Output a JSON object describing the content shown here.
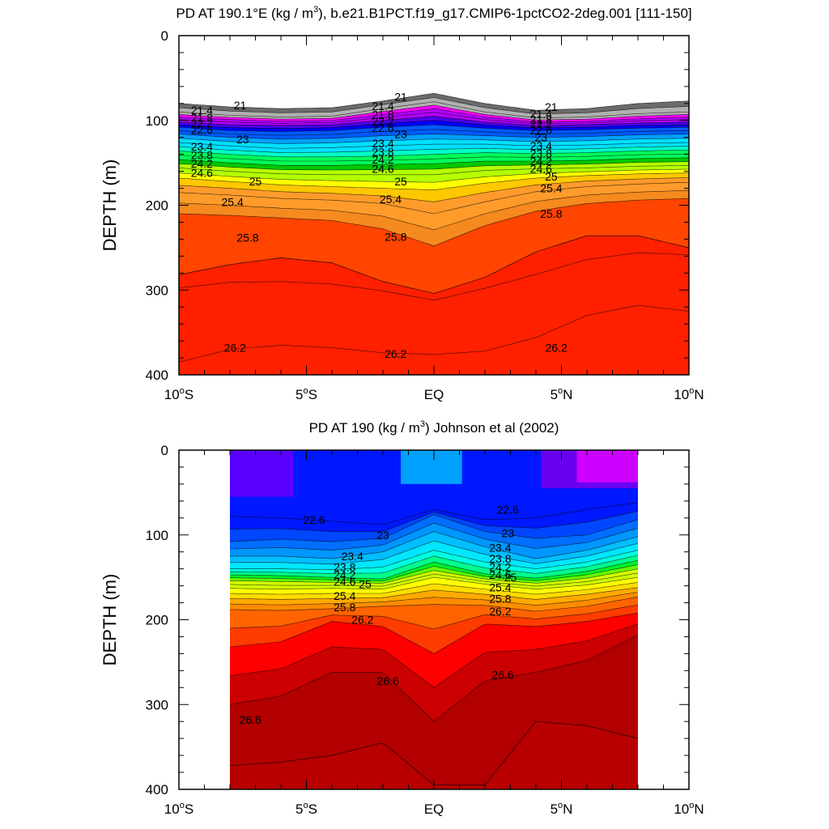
{
  "chart_data": [
    {
      "type": "heatmap",
      "title": "PD AT 190.1°E (kg / m",
      "title_sup": "3",
      "title_tail": "), b.e21.B1PCT.f19_g17.CMIP6-1pctCO2-2deg.001 [111-150]",
      "ylabel": "DEPTH (m)",
      "xlim": [
        -10,
        10
      ],
      "ylim": [
        400,
        0
      ],
      "y_ticks": [
        0,
        100,
        200,
        300,
        400
      ],
      "x_ticks": [
        {
          "v": -10,
          "num": "10",
          "hem": "S"
        },
        {
          "v": -5,
          "num": "5",
          "hem": "S"
        },
        {
          "v": 0,
          "num": "",
          "hem": "EQ"
        },
        {
          "v": 5,
          "num": "5",
          "hem": "N"
        },
        {
          "v": 10,
          "num": "10",
          "hem": "N"
        }
      ],
      "x": [
        -10,
        -8,
        -6,
        -4,
        -2,
        0,
        2,
        4,
        6,
        8,
        10
      ],
      "levels": [
        21,
        21.4,
        21.8,
        22.2,
        22.6,
        23,
        23.4,
        23.8,
        24.2,
        24.6,
        25,
        25.4,
        25.8,
        26.2
      ],
      "contour_depths": [
        [
          80,
          84,
          86,
          85,
          77,
          68,
          80,
          88,
          86,
          80,
          77
        ],
        [
          90,
          94,
          96,
          95,
          86,
          78,
          90,
          97,
          96,
          92,
          90
        ],
        [
          96,
          99,
          101,
          100,
          93,
          86,
          96,
          102,
          101,
          98,
          96
        ],
        [
          102,
          105,
          106,
          105,
          100,
          95,
          102,
          106,
          105,
          103,
          102
        ],
        [
          108,
          112,
          113,
          112,
          108,
          105,
          109,
          112,
          111,
          109,
          108
        ],
        [
          116,
          120,
          122,
          121,
          118,
          116,
          118,
          120,
          119,
          117,
          116
        ],
        [
          126,
          130,
          133,
          132,
          130,
          128,
          128,
          130,
          129,
          127,
          126
        ],
        [
          136,
          140,
          143,
          143,
          142,
          140,
          138,
          139,
          138,
          136,
          135
        ],
        [
          146,
          150,
          153,
          153,
          152,
          151,
          148,
          148,
          147,
          145,
          144
        ],
        [
          156,
          160,
          163,
          164,
          164,
          164,
          159,
          157,
          156,
          154,
          153
        ],
        [
          168,
          172,
          176,
          178,
          180,
          182,
          174,
          168,
          165,
          163,
          162
        ],
        [
          185,
          188,
          192,
          194,
          198,
          210,
          196,
          184,
          178,
          175,
          173
        ],
        [
          210,
          212,
          215,
          218,
          228,
          248,
          224,
          207,
          198,
          194,
          192
        ],
        [
          385,
          370,
          365,
          368,
          374,
          376,
          372,
          356,
          330,
          318,
          325
        ]
      ],
      "bands": [
        {
          "depth": 270,
          "profile": [
            282,
            270,
            262,
            268,
            290,
            304,
            285,
            255,
            236,
            236,
            250
          ]
        }
      ],
      "colors": [
        "#6b6b6b",
        "#b0b0b0",
        "#ff00ff",
        "#b400ff",
        "#4b00e8",
        "#0000ff",
        "#005aff",
        "#00a0ff",
        "#00e0ff",
        "#00ffc8",
        "#00ff5a",
        "#00c800",
        "#b4ff00",
        "#ffff00",
        "#ffc800",
        "#ff9b2a",
        "#f58a1f",
        "#ff4500",
        "#ff0000"
      ],
      "contour_labels": [
        {
          "x": -7.6,
          "d": 82,
          "text": "21"
        },
        {
          "x": -9.1,
          "d": 88,
          "text": "21.4"
        },
        {
          "x": -9.1,
          "d": 97,
          "text": "21.8"
        },
        {
          "x": -9.1,
          "d": 103,
          "text": "22.2"
        },
        {
          "x": -9.1,
          "d": 111,
          "text": "22.6"
        },
        {
          "x": -7.5,
          "d": 122,
          "text": "23"
        },
        {
          "x": -9.1,
          "d": 131,
          "text": "23.4"
        },
        {
          "x": -9.1,
          "d": 141,
          "text": "23.8"
        },
        {
          "x": -9.1,
          "d": 151,
          "text": "24.2"
        },
        {
          "x": -9.1,
          "d": 162,
          "text": "24.6"
        },
        {
          "x": -7.0,
          "d": 172,
          "text": "25"
        },
        {
          "x": -7.9,
          "d": 196,
          "text": "25.4"
        },
        {
          "x": -7.3,
          "d": 238,
          "text": "25.8"
        },
        {
          "x": -7.8,
          "d": 368,
          "text": "26.2"
        },
        {
          "x": -1.3,
          "d": 72,
          "text": "21"
        },
        {
          "x": -2.0,
          "d": 83,
          "text": "21.4"
        },
        {
          "x": -2.0,
          "d": 93,
          "text": "21.8"
        },
        {
          "x": -2.0,
          "d": 101,
          "text": "22.2"
        },
        {
          "x": -2.0,
          "d": 109,
          "text": "22.6"
        },
        {
          "x": -1.3,
          "d": 116,
          "text": "23"
        },
        {
          "x": -2.0,
          "d": 127,
          "text": "23.4"
        },
        {
          "x": -2.0,
          "d": 137,
          "text": "23.8"
        },
        {
          "x": -2.0,
          "d": 146,
          "text": "24.2"
        },
        {
          "x": -2.0,
          "d": 157,
          "text": "24.6"
        },
        {
          "x": -1.3,
          "d": 172,
          "text": "25"
        },
        {
          "x": -1.7,
          "d": 193,
          "text": "25.4"
        },
        {
          "x": -1.5,
          "d": 237,
          "text": "25.8"
        },
        {
          "x": -1.5,
          "d": 375,
          "text": "26.2"
        },
        {
          "x": 4.6,
          "d": 84,
          "text": "21"
        },
        {
          "x": 4.2,
          "d": 92,
          "text": "21.4"
        },
        {
          "x": 4.2,
          "d": 99,
          "text": "21.8"
        },
        {
          "x": 4.2,
          "d": 104,
          "text": "22.2"
        },
        {
          "x": 4.2,
          "d": 111,
          "text": "22.6"
        },
        {
          "x": 4.2,
          "d": 120,
          "text": "23"
        },
        {
          "x": 4.2,
          "d": 130,
          "text": "23.4"
        },
        {
          "x": 4.2,
          "d": 139,
          "text": "23.8"
        },
        {
          "x": 4.2,
          "d": 148,
          "text": "24.2"
        },
        {
          "x": 4.2,
          "d": 157,
          "text": "24.6"
        },
        {
          "x": 4.6,
          "d": 166,
          "text": "25"
        },
        {
          "x": 4.6,
          "d": 180,
          "text": "25.4"
        },
        {
          "x": 4.6,
          "d": 210,
          "text": "25.8"
        },
        {
          "x": 4.8,
          "d": 368,
          "text": "26.2"
        }
      ]
    },
    {
      "type": "heatmap",
      "title": "PD AT 190 (kg / m",
      "title_sup": "3",
      "title_tail": ") Johnson et al (2002)",
      "ylabel": "DEPTH (m)",
      "xlim": [
        -10,
        10
      ],
      "ylim": [
        400,
        0
      ],
      "data_xlim": [
        -8,
        8
      ],
      "y_ticks": [
        0,
        100,
        200,
        300,
        400
      ],
      "x_ticks": [
        {
          "v": -10,
          "num": "10",
          "hem": "S"
        },
        {
          "v": -5,
          "num": "5",
          "hem": "S"
        },
        {
          "v": 0,
          "num": "",
          "hem": "EQ"
        },
        {
          "v": 5,
          "num": "5",
          "hem": "N"
        },
        {
          "v": 10,
          "num": "10",
          "hem": "N"
        }
      ],
      "x": [
        -8,
        -6,
        -4,
        -2,
        0,
        2,
        4,
        6,
        8
      ],
      "levels": [
        22.6,
        23,
        23.4,
        23.8,
        24.2,
        24.6,
        25,
        25.4,
        25.8,
        26.2,
        26.6
      ],
      "contour_depths": [
        [
          78,
          80,
          84,
          88,
          70,
          82,
          80,
          70,
          62
        ],
        [
          108,
          105,
          108,
          104,
          76,
          96,
          104,
          100,
          82
        ],
        [
          125,
          125,
          128,
          120,
          96,
          114,
          128,
          118,
          102
        ],
        [
          140,
          140,
          141,
          138,
          118,
          132,
          140,
          132,
          118
        ],
        [
          147,
          148,
          150,
          152,
          132,
          146,
          151,
          143,
          130
        ],
        [
          154,
          155,
          156,
          157,
          142,
          152,
          157,
          151,
          140
        ],
        [
          163,
          164,
          163,
          164,
          150,
          158,
          164,
          159,
          150
        ],
        [
          175,
          176,
          175,
          174,
          165,
          170,
          176,
          170,
          162
        ],
        [
          188,
          189,
          187,
          184,
          182,
          183,
          190,
          184,
          173
        ],
        [
          232,
          226,
          202,
          208,
          240,
          205,
          208,
          202,
          192
        ],
        [
          300,
          290,
          262,
          262,
          320,
          272,
          262,
          248,
          218
        ]
      ],
      "upper_regions": [
        {
          "x0": -8,
          "x1": -5.5,
          "depth": 55,
          "color": "#5a00ff"
        },
        {
          "x0": 4.2,
          "x1": 8,
          "depth": 45,
          "color": "#6a00f0"
        },
        {
          "x0": 5.6,
          "x1": 8,
          "depth": 38,
          "color": "#cc00ff"
        },
        {
          "x0": -1.3,
          "x1": 1.1,
          "depth": 40,
          "color": "#00a0ff"
        }
      ],
      "bands": [
        {
          "depth": 355,
          "profile": [
            372,
            368,
            360,
            345,
            395,
            395,
            320,
            325,
            340
          ]
        }
      ],
      "colors": [
        "#0018ff",
        "#0046ff",
        "#006eff",
        "#0096ff",
        "#00beff",
        "#00e6ff",
        "#00ffe0",
        "#00ff8c",
        "#00f028",
        "#64ff00",
        "#d2ff00",
        "#ffff00",
        "#ffdc00",
        "#ffaa00",
        "#ff8c00",
        "#ff6400",
        "#ff3c00",
        "#ff0000",
        "#cc0000",
        "#b20000"
      ],
      "contour_labels": [
        {
          "x": -4.7,
          "d": 82,
          "text": "22.6"
        },
        {
          "x": 2.9,
          "d": 70,
          "text": "22.6"
        },
        {
          "x": -2.0,
          "d": 100,
          "text": "23"
        },
        {
          "x": 2.9,
          "d": 98,
          "text": "23"
        },
        {
          "x": -3.2,
          "d": 125,
          "text": "23.4"
        },
        {
          "x": 2.6,
          "d": 115,
          "text": "23.4"
        },
        {
          "x": -3.5,
          "d": 138,
          "text": "23.8"
        },
        {
          "x": 2.6,
          "d": 128,
          "text": "23.8"
        },
        {
          "x": -3.5,
          "d": 147,
          "text": "24.2"
        },
        {
          "x": 2.6,
          "d": 138,
          "text": "24.2"
        },
        {
          "x": -3.5,
          "d": 155,
          "text": "24.6"
        },
        {
          "x": 2.6,
          "d": 147,
          "text": "24.6"
        },
        {
          "x": -2.7,
          "d": 158,
          "text": "25"
        },
        {
          "x": 3.0,
          "d": 150,
          "text": "25"
        },
        {
          "x": -3.5,
          "d": 172,
          "text": "25.4"
        },
        {
          "x": 2.6,
          "d": 162,
          "text": "25.4"
        },
        {
          "x": -3.5,
          "d": 185,
          "text": "25.8"
        },
        {
          "x": 2.6,
          "d": 175,
          "text": "25.8"
        },
        {
          "x": -2.8,
          "d": 200,
          "text": "26.2"
        },
        {
          "x": 2.6,
          "d": 190,
          "text": "26.2"
        },
        {
          "x": -1.8,
          "d": 272,
          "text": "26.6"
        },
        {
          "x": 2.7,
          "d": 265,
          "text": "26.6"
        },
        {
          "x": -7.2,
          "d": 318,
          "text": "26.6"
        }
      ]
    }
  ]
}
